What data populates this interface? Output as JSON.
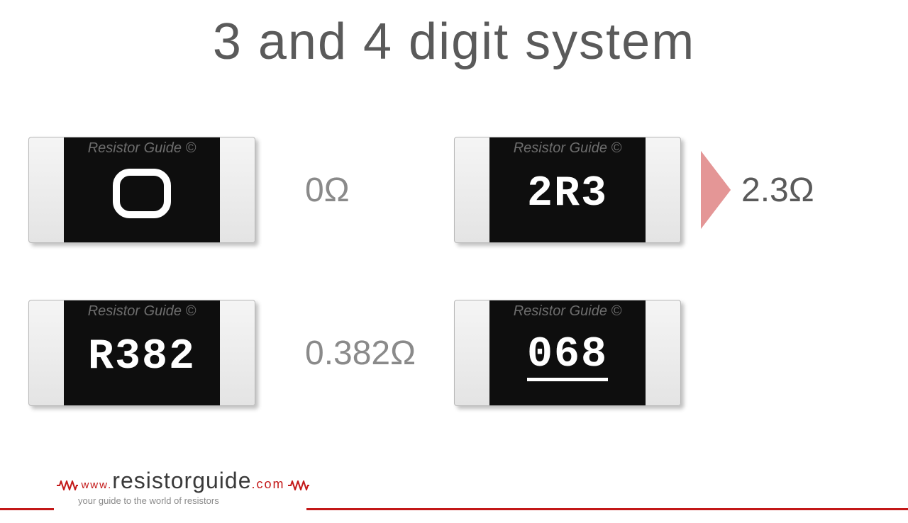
{
  "title": "3 and 4 digit system",
  "watermark": "Resistor Guide ©",
  "resistors": [
    {
      "code": "0",
      "is_zero_shape": true,
      "underlined": false,
      "value": "0Ω",
      "show_arrow": false
    },
    {
      "code": "2R3",
      "is_zero_shape": false,
      "underlined": false,
      "value": "2.3Ω",
      "show_arrow": true
    },
    {
      "code": "R382",
      "is_zero_shape": false,
      "underlined": false,
      "value": "0.382Ω",
      "show_arrow": false
    },
    {
      "code": "068",
      "is_zero_shape": false,
      "underlined": true,
      "value": "",
      "show_arrow": false
    }
  ],
  "colors": {
    "accent": "#c31818",
    "title_text": "#5a5a5a",
    "label_text": "#8a8a8a",
    "resistor_body": "#0e0e0e",
    "resistor_end": "#e4e4e4",
    "code_text": "#ffffff"
  },
  "footer": {
    "www": "www.",
    "brand": "resistorguide",
    "dotcom": ".com",
    "tagline": "your guide to the world of resistors"
  }
}
